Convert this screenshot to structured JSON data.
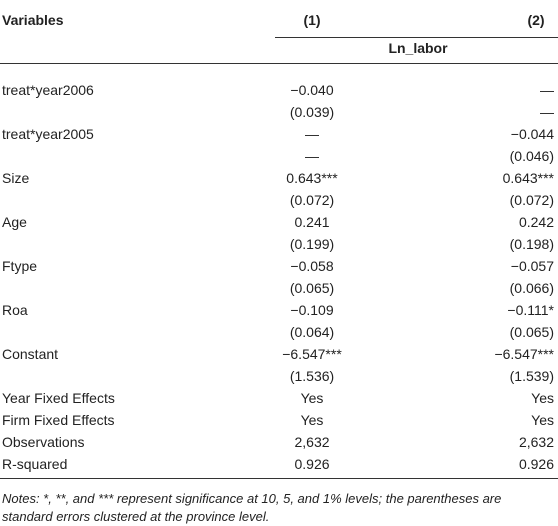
{
  "table": {
    "header": [
      "Variables",
      "(1)",
      "(2)"
    ],
    "dependent": "Ln_labor",
    "rows": [
      [
        "treat*year2006",
        "−0.040",
        "—"
      ],
      [
        null,
        "(0.039)",
        "—"
      ],
      [
        "treat*year2005",
        "—",
        "−0.044"
      ],
      [
        null,
        "—",
        "(0.046)"
      ],
      [
        "Size",
        "0.643***",
        "0.643***"
      ],
      [
        null,
        "(0.072)",
        "(0.072)"
      ],
      [
        "Age",
        "0.241",
        "0.242"
      ],
      [
        null,
        "(0.199)",
        "(0.198)"
      ],
      [
        "Ftype",
        "−0.058",
        "−0.057"
      ],
      [
        null,
        "(0.065)",
        "(0.066)"
      ],
      [
        "Roa",
        "−0.109",
        "−0.111*"
      ],
      [
        null,
        "(0.064)",
        "(0.065)"
      ],
      [
        "Constant",
        "−6.547***",
        "−6.547***"
      ],
      [
        null,
        "(1.536)",
        "(1.539)"
      ],
      [
        "Year Fixed Effects",
        "Yes",
        "Yes"
      ],
      [
        "Firm Fixed Effects",
        "Yes",
        "Yes"
      ],
      [
        "Observations",
        "2,632",
        "2,632"
      ],
      [
        "R-squared",
        "0.926",
        "0.926"
      ]
    ],
    "notes": "Notes: *, **, and *** represent significance at 10, 5, and 1% levels; the parentheses are standard errors clustered at the province level."
  }
}
